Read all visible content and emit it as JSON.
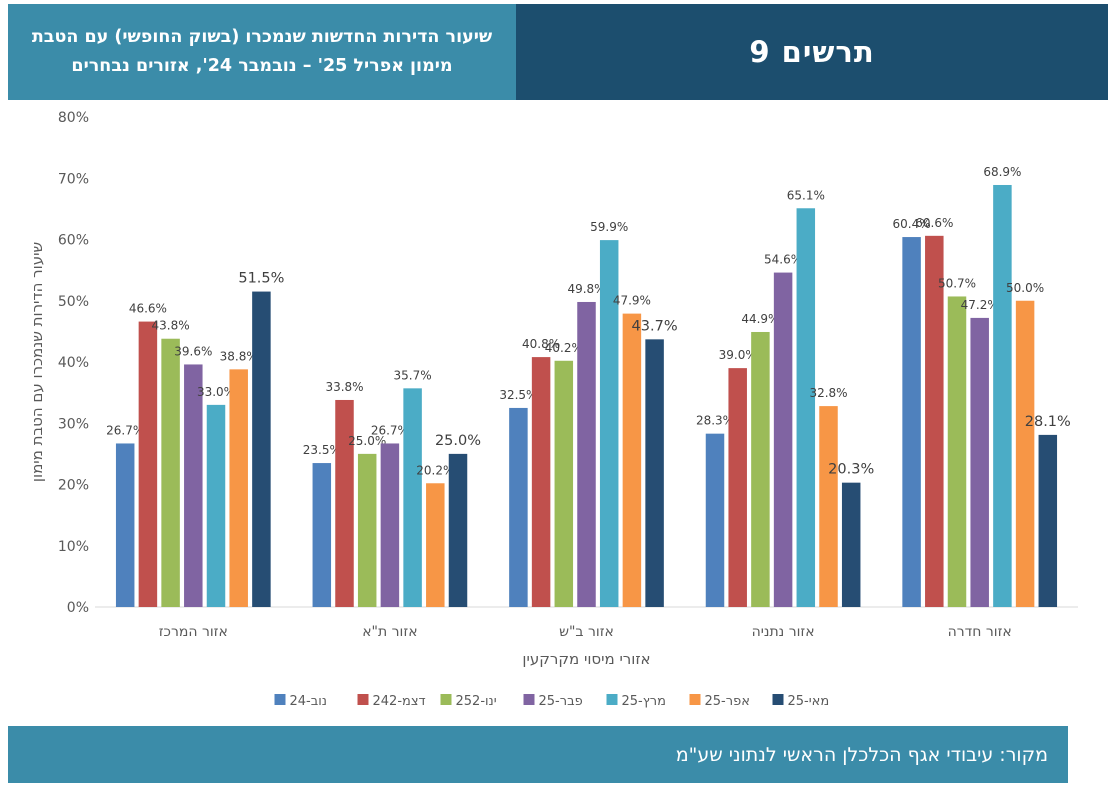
{
  "header": {
    "figure_label": "תרשים 9",
    "title": "שיעור הדירות החדשות שנמכרו (בשוק החופשי) עם הטבת מימון אפריל 25' – נובמבר 24', אזורים נבחרים"
  },
  "footer": {
    "source": "מקור: עיבודי אגף הכלכלן הראשי לנתוני שע\"מ"
  },
  "chart_data": {
    "type": "bar",
    "title": "",
    "xlabel": "אזורי מיסוי מקרקעין",
    "ylabel": "שיעור הדירות שנמכרו עם הטבת מימון",
    "ylim": [
      0,
      80
    ],
    "yticks": [
      "0%",
      "10%",
      "20%",
      "30%",
      "40%",
      "50%",
      "60%",
      "70%",
      "80%"
    ],
    "categories": [
      "אזור המרכז",
      "אזור ת\"א",
      "אזור ב\"ש",
      "אזור נתניה",
      "אזור חדרה"
    ],
    "legend_position": "bottom",
    "series": [
      {
        "name": "נוב-24",
        "color": "#4f81bd",
        "values": [
          26.7,
          23.5,
          32.5,
          28.3,
          60.4
        ],
        "labels": [
          "26.7%",
          "23.5%",
          "32.5%",
          "28.3%",
          "60.4%"
        ]
      },
      {
        "name": "דצמ-242",
        "color": "#c0504d",
        "values": [
          46.6,
          33.8,
          40.8,
          39.0,
          60.6
        ],
        "labels": [
          "46.6%",
          "33.8%",
          "40.8%",
          "39.0%",
          "60.6%"
        ]
      },
      {
        "name": "ינו-252",
        "color": "#9bbb59",
        "values": [
          43.8,
          25.0,
          40.2,
          44.9,
          50.7
        ],
        "labels": [
          "43.8%",
          "25.0%",
          "40.2%",
          "44.9%",
          "50.7%"
        ]
      },
      {
        "name": "פבר-25",
        "color": "#8064a2",
        "values": [
          39.6,
          26.7,
          49.8,
          54.6,
          47.2
        ],
        "labels": [
          "39.6%",
          "26.7%",
          "49.8%",
          "54.6%",
          "47.2%"
        ]
      },
      {
        "name": "מרץ-25",
        "color": "#4bacc6",
        "values": [
          33.0,
          35.7,
          59.9,
          65.1,
          68.9
        ],
        "labels": [
          "33.0%",
          "35.7%",
          "59.9%",
          "65.1%",
          "68.9%"
        ]
      },
      {
        "name": "אפר-25",
        "color": "#f79646",
        "values": [
          38.8,
          20.2,
          47.9,
          32.8,
          50.0
        ],
        "labels": [
          "38.8%",
          "20.2%",
          "47.9%",
          "32.8%",
          "50.0%"
        ]
      },
      {
        "name": "מאי-25",
        "color": "#264d73",
        "values": [
          51.5,
          25.0,
          43.7,
          20.3,
          28.1
        ],
        "labels": [
          "51.5%",
          "25.0%",
          "43.7%",
          "20.3%",
          "28.1%"
        ]
      }
    ]
  }
}
